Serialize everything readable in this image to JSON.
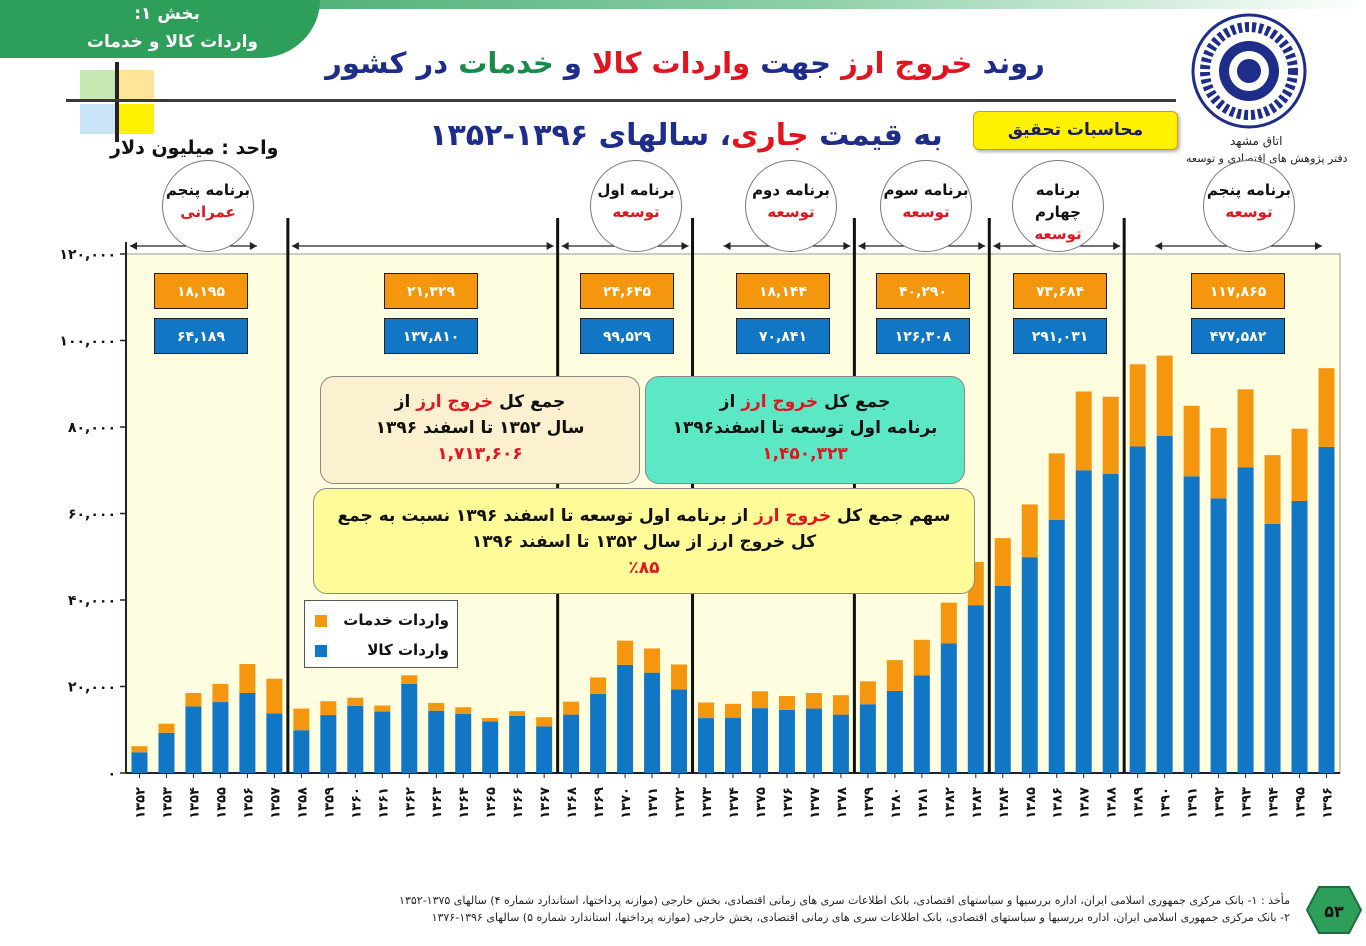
{
  "section": {
    "line1": "بخش ۱:",
    "line2": "واردات کالا و خدمات"
  },
  "title": {
    "p1": "روند ",
    "p2": "خروج ارز",
    "p3": " جهت ",
    "p4": " واردات",
    "p5": " کالا",
    "p6": " و ",
    "p7": "خدمات",
    "p8": " در کشور"
  },
  "org": {
    "line1": "اتاق مشهد",
    "line2": "دفتر پژوهش های اقتصادی و توسعه"
  },
  "research_label": "محاسبات تحقیق",
  "subtitle": {
    "p1": "به قیمت ",
    "p2": "جاری",
    "p3": "، سالهای ۱۳۹۶-۱۳۵۲"
  },
  "unit": "واحد : میلیون دلار",
  "colors": {
    "services": "#f4970f",
    "goods": "#1177c5",
    "plot_bg": "#fffde0",
    "accent_red": "#e0151f",
    "title_blue": "#1f2d8a"
  },
  "plans": [
    {
      "line1": "برنامه پنجم",
      "line2": "عمرانی",
      "services": "۱۸,۱۹۵",
      "goods": "۶۴,۱۸۹"
    },
    {
      "line1": "",
      "line2": "",
      "services": "۲۱,۳۲۹",
      "goods": "۱۳۷,۸۱۰"
    },
    {
      "line1": "برنامه اول",
      "line2": "توسعه",
      "services": "۲۴,۶۴۵",
      "goods": "۹۹,۵۲۹"
    },
    {
      "line1": "برنامه دوم",
      "line2": "توسعه",
      "services": "۱۸,۱۴۴",
      "goods": "۷۰,۸۴۱"
    },
    {
      "line1": "برنامه سوم",
      "line2": "توسعه",
      "services": "۴۰,۲۹۰",
      "goods": "۱۲۶,۳۰۸"
    },
    {
      "line1": "برنامه چهارم",
      "line2": "توسعه",
      "services": "۷۳,۶۸۴",
      "goods": "۲۹۱,۰۳۱"
    },
    {
      "line1": "برنامه پنجم",
      "line2": "توسعه",
      "services": "۱۱۷,۸۶۵",
      "goods": "۴۷۷,۵۸۲"
    }
  ],
  "notes": {
    "n1": {
      "a": "جمع کل ",
      "b": "خروج ارز",
      "c": " از",
      "d": "سال ۱۳۵۲ تا اسفند ۱۳۹۶",
      "e": "۱,۷۱۳,۶۰۶"
    },
    "n2": {
      "a": "جمع کل ",
      "b": "خروج ارز",
      "c": " از",
      "d": "برنامه اول توسعه تا اسفند۱۳۹۶",
      "e": "۱,۴۵۰,۳۲۳"
    },
    "n3": {
      "a": "سهم جمع کل ",
      "b": "خروج ارز",
      "c": " از برنامه اول توسعه تا اسفند ۱۳۹۶ نسبت به جمع",
      "d": "کل خروج ارز از سال ۱۳۵۲ تا اسفند ۱۳۹۶",
      "e": "٪۸۵"
    }
  },
  "legend": {
    "services": "واردات خدمات",
    "goods": "واردات کالا"
  },
  "footer": {
    "line1": "مأخذ : ۱- بانک مرکزی جمهوری اسلامی ایران، اداره بررسیها و سیاستهای اقتصادی، بانک اطلاعات سری های زمانی اقتصادی، بخش خارجی (موازنه پرداختها، استاندارد شماره ۴) سالهای ۱۳۷۵-۱۳۵۲",
    "line2": "۲- بانک مرکزی جمهوری اسلامی ایران، اداره بررسیها و سیاستهای اقتصادی، بانک اطلاعات سری های زمانی اقتصادی، بخش خارجی (موازنه پرداختها، استاندارد شماره ۵) سالهای ۱۳۹۶-۱۳۷۶",
    "page": "۵۳"
  },
  "chart_data": {
    "type": "bar",
    "stacked": true,
    "ylim": [
      0,
      120000
    ],
    "yticks": [
      0,
      20000,
      40000,
      60000,
      80000,
      100000,
      120000
    ],
    "ytick_labels": [
      "۰",
      "۲۰,۰۰۰",
      "۴۰,۰۰۰",
      "۶۰,۰۰۰",
      "۸۰,۰۰۰",
      "۱۰۰,۰۰۰",
      "۱۲۰,۰۰۰"
    ],
    "categories": [
      "۱۳۵۲",
      "۱۳۵۳",
      "۱۳۵۴",
      "۱۳۵۵",
      "۱۳۵۶",
      "۱۳۵۷",
      "۱۳۵۸",
      "۱۳۵۹",
      "۱۳۶۰",
      "۱۳۶۱",
      "۱۳۶۲",
      "۱۳۶۳",
      "۱۳۶۴",
      "۱۳۶۵",
      "۱۳۶۶",
      "۱۳۶۷",
      "۱۳۶۸",
      "۱۳۶۹",
      "۱۳۷۰",
      "۱۳۷۱",
      "۱۳۷۲",
      "۱۳۷۳",
      "۱۳۷۴",
      "۱۳۷۵",
      "۱۳۷۶",
      "۱۳۷۷",
      "۱۳۷۸",
      "۱۳۷۹",
      "۱۳۸۰",
      "۱۳۸۱",
      "۱۳۸۲",
      "۱۳۸۳",
      "۱۳۸۴",
      "۱۳۸۵",
      "۱۳۸۶",
      "۱۳۸۷",
      "۱۳۸۸",
      "۱۳۸۹",
      "۱۳۹۰",
      "۱۳۹۱",
      "۱۳۹۲",
      "۱۳۹۳",
      "۱۳۹۴",
      "۱۳۹۵",
      "۱۳۹۶"
    ],
    "series": [
      {
        "name": "واردات کالا",
        "values": [
          4800,
          9300,
          15400,
          16400,
          18500,
          13800,
          9900,
          13400,
          15500,
          14200,
          20600,
          14400,
          13700,
          11900,
          13200,
          10800,
          13500,
          18300,
          25000,
          23200,
          19300,
          12700,
          12800,
          15000,
          14600,
          14900,
          13500,
          15900,
          19000,
          22600,
          30000,
          38800,
          43300,
          49900,
          58500,
          70000,
          69200,
          75500,
          78000,
          68600,
          63500,
          70700,
          57600,
          62900,
          75400
        ]
      },
      {
        "name": "واردات خدمات",
        "values": [
          1400,
          2100,
          3100,
          4200,
          6700,
          8000,
          5000,
          3200,
          1900,
          1400,
          2000,
          1800,
          1500,
          800,
          1100,
          2100,
          3000,
          3800,
          5600,
          5600,
          5800,
          3600,
          3200,
          3900,
          3200,
          3600,
          4500,
          5300,
          7100,
          8200,
          9400,
          10000,
          11000,
          12200,
          15400,
          18200,
          17800,
          19000,
          18500,
          16300,
          16300,
          18000,
          15900,
          16700,
          18200
        ]
      }
    ],
    "period_boundaries": [
      "۱۳۵۷",
      "۱۳۶۸",
      "۱۳۷۳",
      "۱۳۷۹",
      "۱۳۸۴",
      "۱۳۸۹"
    ]
  }
}
